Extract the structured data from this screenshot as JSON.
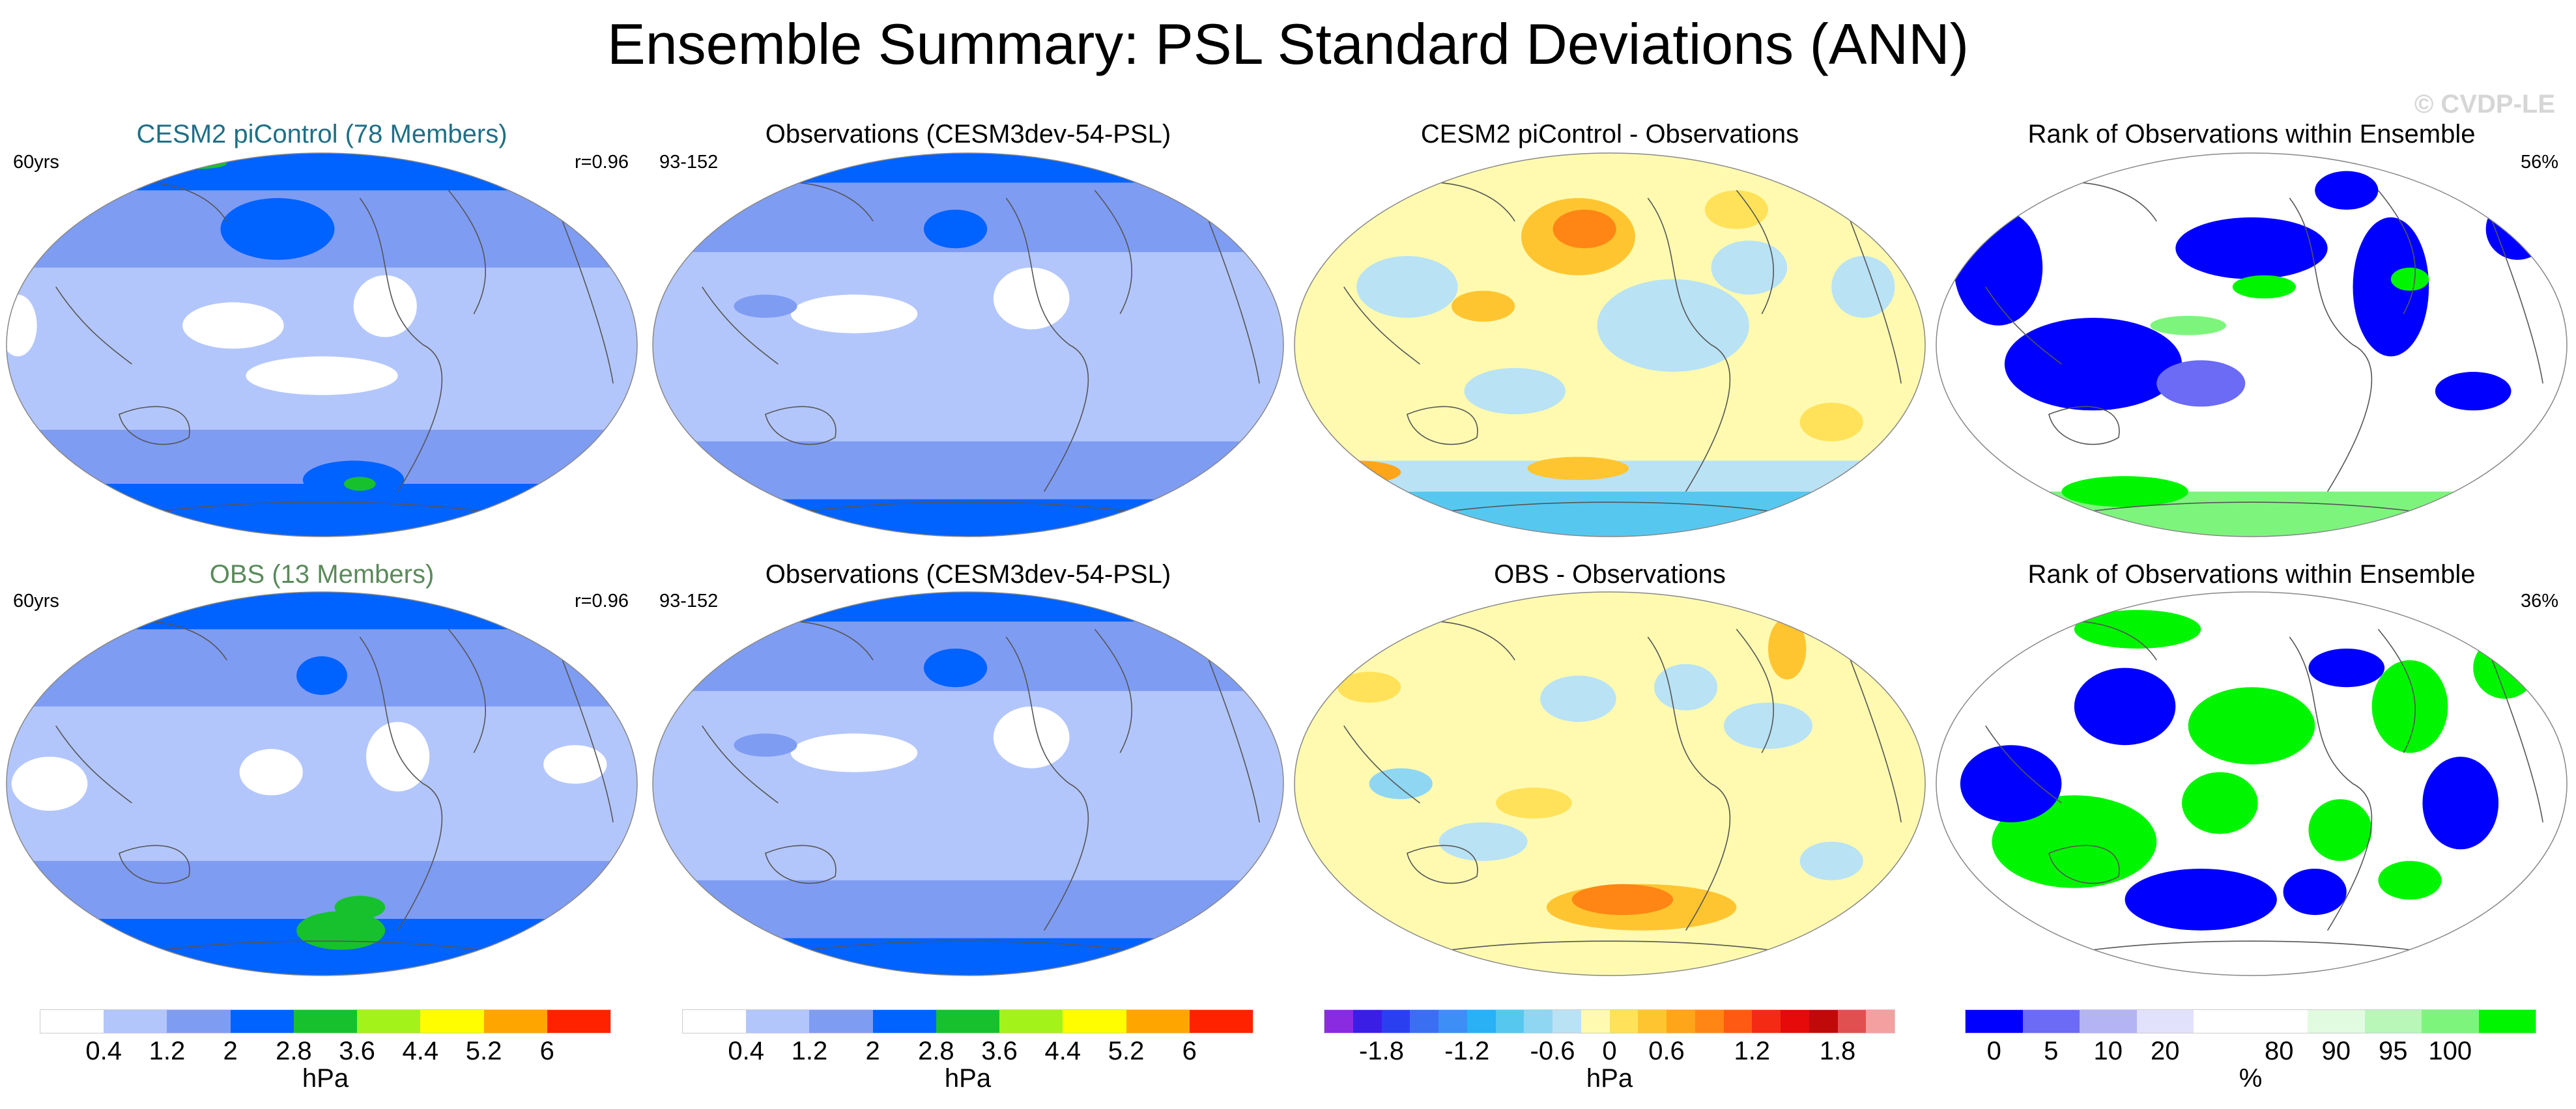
{
  "title": "Ensemble Summary: PSL Standard Deviations (ANN)",
  "copyright": "© CVDP-LE",
  "panels": [
    {
      "title": "CESM2 piControl (78 Members)",
      "title_color": "#1f6f86",
      "left": "60yrs",
      "right": "r=0.96",
      "scheme": "std_ens1"
    },
    {
      "title": "Observations (CESM3dev-54-PSL)",
      "title_color": "#000000",
      "left": "93-152",
      "right": "",
      "scheme": "std_obs"
    },
    {
      "title": "CESM2 piControl - Observations",
      "title_color": "#000000",
      "left": "",
      "right": "",
      "scheme": "diff1"
    },
    {
      "title": "Rank of Observations within Ensemble",
      "title_color": "#000000",
      "left": "",
      "right": "56%",
      "scheme": "rank1"
    },
    {
      "title": "OBS (13 Members)",
      "title_color": "#5a8a5a",
      "left": "60yrs",
      "right": "r=0.96",
      "scheme": "std_ens2"
    },
    {
      "title": "Observations (CESM3dev-54-PSL)",
      "title_color": "#000000",
      "left": "93-152",
      "right": "",
      "scheme": "std_obs"
    },
    {
      "title": "OBS - Observations",
      "title_color": "#000000",
      "left": "",
      "right": "",
      "scheme": "diff2"
    },
    {
      "title": "Rank of Observations within Ensemble",
      "title_color": "#000000",
      "left": "",
      "right": "36%",
      "scheme": "rank2"
    }
  ],
  "colorbars": [
    {
      "unit": "hPa",
      "colors": [
        "#ffffff",
        "#b3c6fb",
        "#7f9cf3",
        "#0062ff",
        "#17c12d",
        "#a3f31b",
        "#fffd00",
        "#ffa500",
        "#ff2200"
      ],
      "labels": [
        "0.4",
        "1.2",
        "2",
        "2.8",
        "3.6",
        "4.4",
        "5.2",
        "6"
      ]
    },
    {
      "unit": "hPa",
      "colors": [
        "#ffffff",
        "#b3c6fb",
        "#7f9cf3",
        "#0062ff",
        "#17c12d",
        "#a3f31b",
        "#fffd00",
        "#ffa500",
        "#ff2200"
      ],
      "labels": [
        "0.4",
        "1.2",
        "2",
        "2.8",
        "3.6",
        "4.4",
        "5.2",
        "6"
      ]
    },
    {
      "unit": "hPa",
      "colors": [
        "#8a2be2",
        "#3b1ee6",
        "#2a40f0",
        "#3b6ff2",
        "#3d8ff5",
        "#2ab0f5",
        "#56c8f0",
        "#8fd6f3",
        "#b9e2f4",
        "#fffab0",
        "#ffe25a",
        "#ffc531",
        "#ffa519",
        "#ff8614",
        "#ff5a14",
        "#f52a14",
        "#e60a0a",
        "#c00a0a",
        "#e05050",
        "#f5a0a0"
      ],
      "labels": [
        "-1.8",
        "-1.2",
        "-0.6",
        "0",
        "0.6",
        "1.2",
        "1.8"
      ]
    },
    {
      "unit": "%",
      "colors": [
        "#0000ff",
        "#6b6bf5",
        "#b4b4f5",
        "#e1e1fb",
        "#ffffff",
        "#ffffff",
        "#e1fbe1",
        "#b8f7b8",
        "#7df57d",
        "#00f500"
      ],
      "labels": [
        "0",
        "5",
        "10",
        "20",
        "80",
        "90",
        "95",
        "100"
      ]
    }
  ]
}
